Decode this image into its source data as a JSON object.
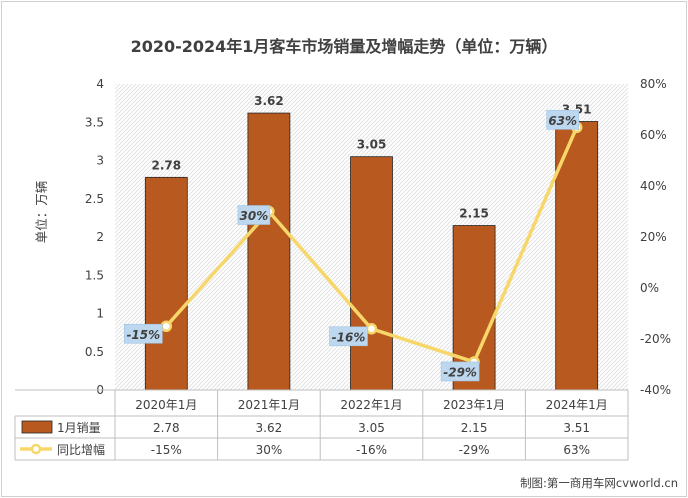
{
  "chart_data": {
    "type": "bar",
    "title": "2020-2024年1月客车市场销量及增幅走势（单位：万辆）",
    "ylabel": "单位：万辆",
    "categories": [
      "2020年1月",
      "2021年1月",
      "2022年1月",
      "2023年1月",
      "2024年1月"
    ],
    "ylim": [
      0,
      4
    ],
    "y_ticks": [
      "0",
      "0.5",
      "1",
      "1.5",
      "2",
      "2.5",
      "3",
      "3.5",
      "4"
    ],
    "y2lim": [
      -40,
      80
    ],
    "y2_ticks": [
      "-40%",
      "-20%",
      "0%",
      "20%",
      "40%",
      "60%",
      "80%"
    ],
    "grid": "hatched",
    "series": [
      {
        "name": "1月销量",
        "type": "bar",
        "color": "#b85a1f",
        "values": [
          2.78,
          3.62,
          3.05,
          2.15,
          3.51
        ],
        "labels": [
          "2.78",
          "3.62",
          "3.05",
          "2.15",
          "3.51"
        ]
      },
      {
        "name": "同比增幅",
        "type": "line",
        "axis": "secondary",
        "color": "#f7d76a",
        "values": [
          -15,
          30,
          -16,
          -29,
          63
        ],
        "labels": [
          "-15%",
          "30%",
          "-16%",
          "-29%",
          "63%"
        ]
      }
    ],
    "source": "制图:第一商用车网cvworld.cn"
  }
}
